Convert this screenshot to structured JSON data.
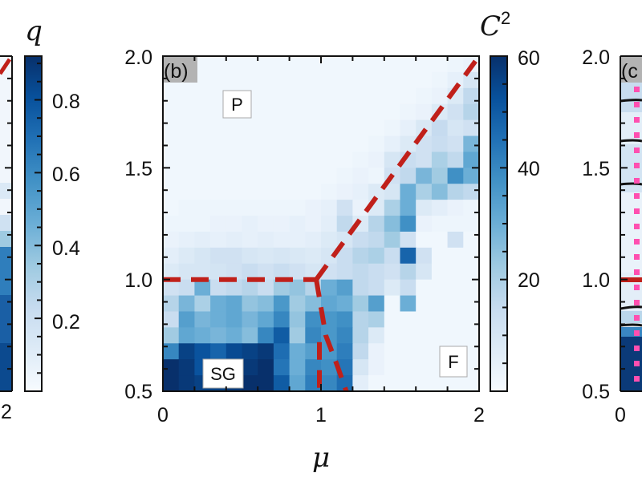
{
  "figure": {
    "left_panel_partial": {
      "colorbar_title": "q",
      "colorbar_ticks": [
        "0.8",
        "0.6",
        "0.4",
        "0.2"
      ],
      "x_tick_visible": "2"
    },
    "panel_b": {
      "tag": "(b)",
      "colorbar_title_base": "C",
      "colorbar_title_sup": "2",
      "colorbar_ticks": [
        "60",
        "40",
        "20"
      ],
      "x_ticks": [
        "0",
        "1",
        "2"
      ],
      "y_ticks": [
        "2.0",
        "1.5",
        "1.0",
        "0.5"
      ],
      "xlabel": "μ",
      "region_labels": {
        "P": "P",
        "SG": "SG",
        "F": "F"
      }
    },
    "right_panel_partial": {
      "tag": "(c",
      "y_ticks": [
        "2.0",
        "1.5",
        "1.0",
        "0.5"
      ],
      "x_tick_visible": "0"
    }
  },
  "chart_data": [
    {
      "type": "heatmap",
      "title": "(b)",
      "xlabel": "μ",
      "ylabel": "",
      "xlim": [
        0,
        2
      ],
      "ylim": [
        0.5,
        2.0
      ],
      "colorbar": {
        "label": "C^2",
        "range": [
          0,
          60
        ],
        "ticks": [
          20,
          40,
          60
        ],
        "colormap": "Blues"
      },
      "grid_shape": [
        21,
        20
      ],
      "note": "rows from top (y=2.0) to bottom (y=0.5); values are C^2 estimates",
      "values": [
        [
          2,
          2,
          2,
          2,
          2,
          2,
          2,
          2,
          2,
          2,
          2,
          2,
          2,
          2,
          2,
          2,
          2,
          2,
          3,
          4
        ],
        [
          2,
          2,
          2,
          2,
          2,
          2,
          2,
          2,
          2,
          2,
          2,
          2,
          2,
          2,
          2,
          2,
          2,
          3,
          5,
          10
        ],
        [
          2,
          2,
          2,
          2,
          2,
          2,
          2,
          2,
          2,
          2,
          2,
          2,
          2,
          2,
          2,
          2,
          3,
          4,
          8,
          16
        ],
        [
          2,
          2,
          2,
          2,
          2,
          2,
          2,
          2,
          2,
          2,
          2,
          2,
          2,
          2,
          2,
          3,
          4,
          8,
          12,
          18
        ],
        [
          2,
          2,
          2,
          2,
          2,
          2,
          2,
          2,
          2,
          2,
          2,
          2,
          2,
          2,
          3,
          5,
          9,
          15,
          10,
          12
        ],
        [
          2,
          2,
          2,
          2,
          2,
          2,
          2,
          2,
          2,
          2,
          2,
          2,
          2,
          3,
          5,
          8,
          12,
          14,
          12,
          28
        ],
        [
          2,
          2,
          2,
          2,
          2,
          2,
          2,
          2,
          2,
          2,
          2,
          2,
          3,
          4,
          10,
          14,
          12,
          20,
          16,
          32
        ],
        [
          2,
          2,
          2,
          2,
          2,
          2,
          2,
          2,
          2,
          2,
          2,
          3,
          4,
          3,
          12,
          16,
          28,
          22,
          38,
          30
        ],
        [
          2,
          2,
          2,
          2,
          2,
          2,
          2,
          2,
          2,
          2,
          3,
          4,
          5,
          8,
          10,
          30,
          20,
          26,
          18,
          16
        ],
        [
          2,
          3,
          3,
          3,
          3,
          3,
          3,
          3,
          3,
          4,
          5,
          12,
          4,
          8,
          20,
          30,
          8,
          6,
          4,
          3
        ],
        [
          3,
          3,
          3,
          4,
          4,
          5,
          4,
          4,
          5,
          4,
          6,
          16,
          8,
          18,
          26,
          38,
          4,
          3,
          3,
          3
        ],
        [
          4,
          5,
          6,
          5,
          6,
          5,
          6,
          5,
          5,
          6,
          8,
          10,
          14,
          16,
          22,
          12,
          2,
          2,
          12,
          2
        ],
        [
          6,
          8,
          10,
          12,
          12,
          10,
          9,
          10,
          9,
          8,
          10,
          14,
          18,
          20,
          14,
          48,
          12,
          2,
          2,
          2
        ],
        [
          8,
          10,
          10,
          11,
          12,
          14,
          12,
          14,
          12,
          10,
          12,
          14,
          16,
          14,
          12,
          18,
          10,
          2,
          2,
          2
        ],
        [
          12,
          14,
          30,
          14,
          16,
          18,
          14,
          22,
          24,
          18,
          30,
          34,
          16,
          14,
          8,
          14,
          2,
          2,
          2,
          2
        ],
        [
          18,
          28,
          20,
          30,
          32,
          24,
          26,
          36,
          22,
          26,
          32,
          30,
          22,
          34,
          2,
          30,
          2,
          2,
          2,
          2
        ],
        [
          14,
          34,
          28,
          30,
          32,
          28,
          32,
          40,
          24,
          38,
          36,
          38,
          18,
          20,
          2,
          2,
          2,
          2,
          2,
          2
        ],
        [
          22,
          32,
          30,
          28,
          30,
          26,
          40,
          50,
          22,
          40,
          36,
          40,
          18,
          8,
          2,
          2,
          2,
          2,
          2,
          2
        ],
        [
          40,
          56,
          52,
          48,
          54,
          56,
          58,
          46,
          30,
          34,
          36,
          42,
          16,
          4,
          2,
          2,
          2,
          2,
          2,
          2
        ],
        [
          60,
          58,
          52,
          54,
          56,
          58,
          60,
          44,
          30,
          40,
          38,
          44,
          10,
          4,
          2,
          2,
          2,
          2,
          2,
          2
        ],
        [
          60,
          58,
          56,
          56,
          58,
          60,
          60,
          50,
          32,
          42,
          40,
          46,
          6,
          2,
          2,
          2,
          2,
          2,
          2,
          2
        ]
      ],
      "phase_boundaries": [
        {
          "name": "P-SG",
          "style": "dashed",
          "color": "#c0201a",
          "points": [
            [
              0,
              1.0
            ],
            [
              0.97,
              1.0
            ]
          ]
        },
        {
          "name": "P-F",
          "style": "dashed",
          "color": "#c0201a",
          "points": [
            [
              0.97,
              1.0
            ],
            [
              2.0,
              2.0
            ]
          ]
        },
        {
          "name": "SG-F",
          "style": "dashed",
          "color": "#c0201a",
          "points": [
            [
              0.97,
              1.0
            ],
            [
              1.03,
              0.75
            ],
            [
              1.1,
              0.62
            ],
            [
              1.16,
              0.5
            ]
          ]
        },
        {
          "name": "SG-F-vertical",
          "style": "dashed",
          "color": "#c0201a",
          "points": [
            [
              0.99,
              0.72
            ],
            [
              0.99,
              0.5
            ]
          ]
        }
      ],
      "annotations": [
        {
          "text": "P",
          "x": 0.52,
          "y": 1.77
        },
        {
          "text": "SG",
          "x": 0.38,
          "y": 0.6
        },
        {
          "text": "F",
          "x": 1.85,
          "y": 0.63
        }
      ]
    }
  ],
  "colors": {
    "boundary_red": "#c0201a",
    "panel_tag_bg": "#b3b3b3",
    "pink_dots": "#ff4fb0",
    "blues_low": "#f7fbff",
    "blues_high": "#08306b"
  }
}
